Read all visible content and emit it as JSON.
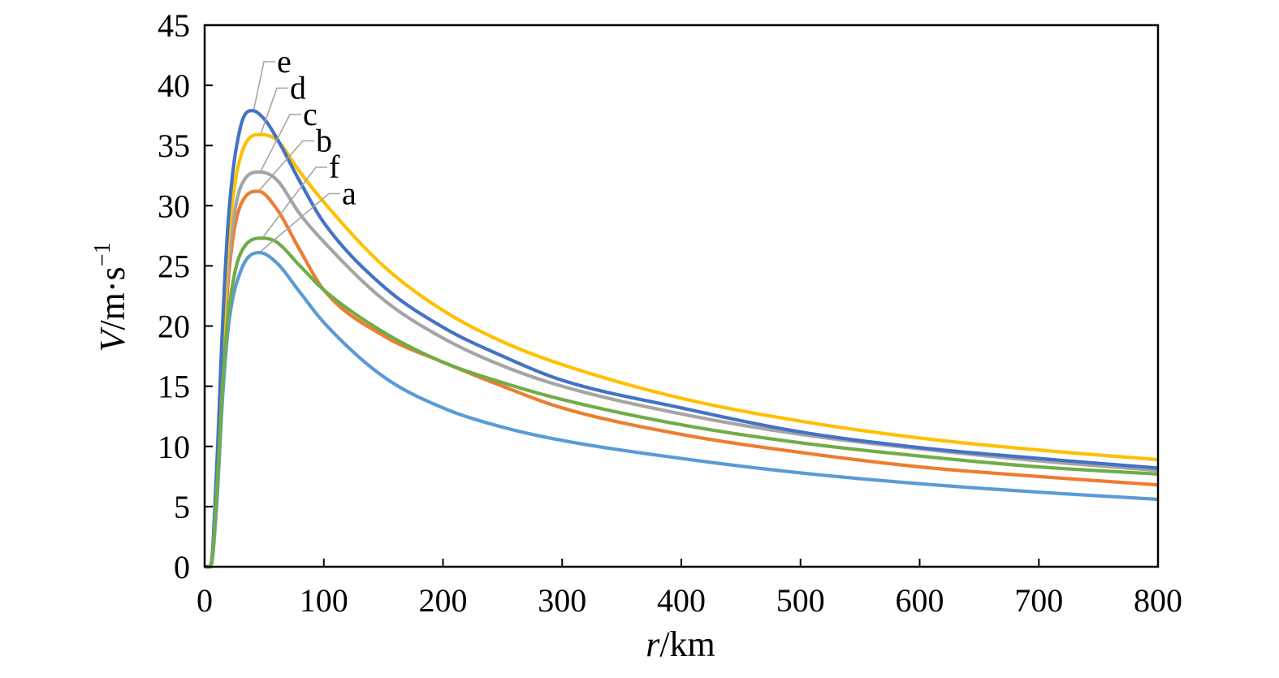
{
  "chart_data": {
    "type": "line",
    "xlabel": {
      "var": "r",
      "unit": "/km"
    },
    "ylabel": {
      "var": "V",
      "unit": "/m·s",
      "exp": "−1"
    },
    "xlim": [
      0,
      800
    ],
    "ylim": [
      0,
      45
    ],
    "x_ticks": [
      "0",
      "100",
      "200",
      "300",
      "400",
      "500",
      "600",
      "700",
      "800"
    ],
    "y_ticks": [
      "0",
      "5",
      "10",
      "15",
      "20",
      "25",
      "30",
      "35",
      "40",
      "45"
    ],
    "grid": false,
    "series": [
      {
        "name": "a",
        "color": "#5b9bd5",
        "x": [
          0,
          5,
          10,
          15,
          20,
          30,
          46,
          60,
          80,
          100,
          150,
          200,
          250,
          300,
          400,
          500,
          600,
          700,
          800
        ],
        "y": [
          0,
          0,
          5,
          14,
          20,
          24.5,
          26.1,
          25.3,
          22.8,
          20.3,
          15.8,
          13.2,
          11.6,
          10.5,
          9.0,
          7.8,
          6.9,
          6.2,
          5.6
        ]
      },
      {
        "name": "b",
        "color": "#ed7d31",
        "x": [
          0,
          5,
          10,
          15,
          20,
          30,
          45,
          60,
          80,
          100,
          150,
          200,
          250,
          300,
          400,
          500,
          600,
          700,
          800
        ],
        "y": [
          0,
          0,
          6,
          16,
          24,
          30,
          31.2,
          29.8,
          26.3,
          23.0,
          19.2,
          17.0,
          15.0,
          13.2,
          11.0,
          9.5,
          8.3,
          7.5,
          6.8
        ]
      },
      {
        "name": "c",
        "color": "#a5a5a5",
        "x": [
          0,
          5,
          10,
          15,
          20,
          30,
          46,
          60,
          80,
          100,
          150,
          200,
          250,
          300,
          400,
          500,
          600,
          700,
          800
        ],
        "y": [
          0,
          0,
          7,
          17,
          25,
          31.5,
          32.8,
          32.2,
          29.3,
          27.0,
          22.2,
          19.0,
          16.7,
          15.0,
          12.7,
          11.0,
          9.8,
          8.8,
          8.0
        ]
      },
      {
        "name": "d",
        "color": "#ffc000",
        "x": [
          0,
          5,
          10,
          15,
          20,
          30,
          46,
          60,
          80,
          100,
          150,
          200,
          250,
          300,
          400,
          500,
          600,
          700,
          800
        ],
        "y": [
          0,
          0,
          7,
          18,
          27,
          34,
          35.9,
          35.5,
          32.8,
          30.3,
          25.0,
          21.3,
          18.7,
          16.8,
          14.0,
          12.1,
          10.7,
          9.7,
          8.9
        ]
      },
      {
        "name": "e",
        "color": "#4472c4",
        "x": [
          0,
          5,
          10,
          15,
          20,
          30,
          40,
          50,
          60,
          80,
          100,
          150,
          200,
          250,
          300,
          400,
          500,
          600,
          700,
          800
        ],
        "y": [
          0,
          0,
          8,
          20,
          29,
          36.5,
          37.9,
          37.2,
          35.7,
          32.0,
          28.6,
          23.3,
          19.9,
          17.5,
          15.5,
          13.2,
          11.2,
          9.9,
          9.0,
          8.2
        ]
      },
      {
        "name": "f",
        "color": "#70ad47",
        "x": [
          0,
          5,
          10,
          15,
          20,
          30,
          48,
          60,
          80,
          100,
          150,
          200,
          250,
          300,
          400,
          500,
          600,
          700,
          800
        ],
        "y": [
          0,
          0,
          6,
          15,
          21,
          26,
          27.3,
          27.0,
          25.0,
          23.0,
          19.5,
          17.0,
          15.3,
          13.9,
          11.8,
          10.3,
          9.2,
          8.3,
          7.7
        ]
      }
    ],
    "callout_order": [
      "e",
      "d",
      "c",
      "b",
      "f",
      "a"
    ]
  }
}
